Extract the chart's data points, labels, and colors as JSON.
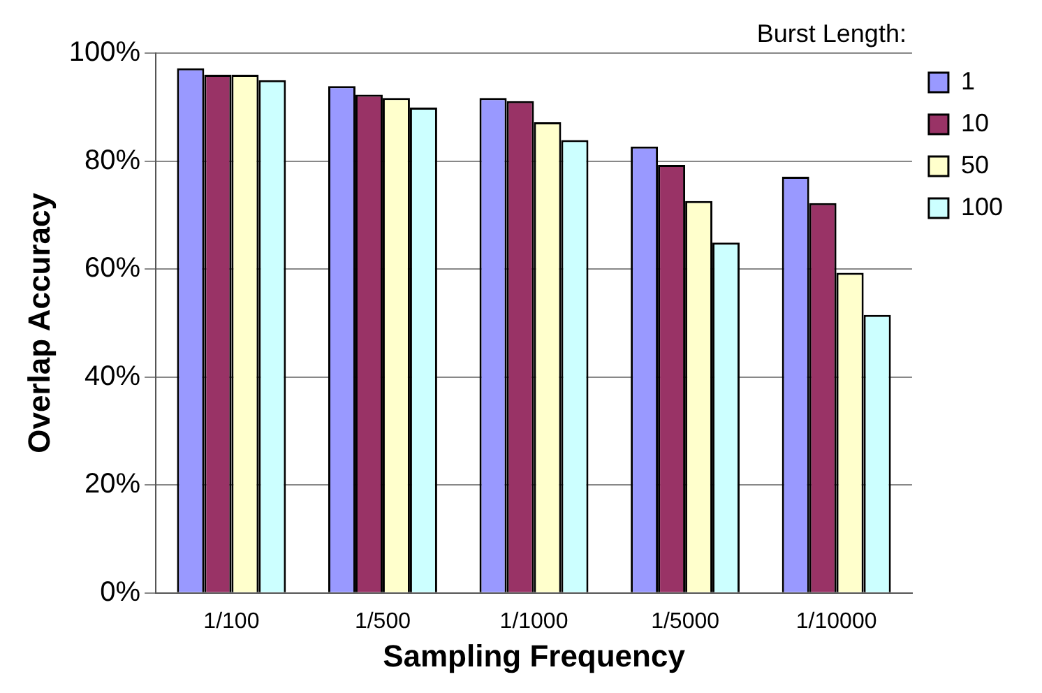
{
  "chart_data": {
    "type": "bar",
    "xlabel": "Sampling Frequency",
    "ylabel": "Overlap Accuracy",
    "legend_title": "Burst Length:",
    "categories": [
      "1/100",
      "1/500",
      "1/1000",
      "1/5000",
      "1/10000"
    ],
    "series": [
      {
        "name": "1",
        "color": "#9999ff",
        "values": [
          97.2,
          93.9,
          91.7,
          82.7,
          77.1
        ]
      },
      {
        "name": "10",
        "color": "#993366",
        "values": [
          96.0,
          92.3,
          91.1,
          79.3,
          72.2
        ]
      },
      {
        "name": "50",
        "color": "#ffffcc",
        "values": [
          96.0,
          91.7,
          87.2,
          72.6,
          59.3
        ]
      },
      {
        "name": "100",
        "color": "#ccffff",
        "values": [
          95.0,
          89.9,
          83.9,
          64.9,
          51.5
        ]
      }
    ],
    "ylim": [
      0,
      100
    ],
    "yticks": [
      {
        "value": 0,
        "label": "0%"
      },
      {
        "value": 20,
        "label": "20%"
      },
      {
        "value": 40,
        "label": "40%"
      },
      {
        "value": 60,
        "label": "60%"
      },
      {
        "value": 80,
        "label": "80%"
      },
      {
        "value": 100,
        "label": "100%"
      }
    ],
    "grid": "y",
    "legend": "top right"
  }
}
